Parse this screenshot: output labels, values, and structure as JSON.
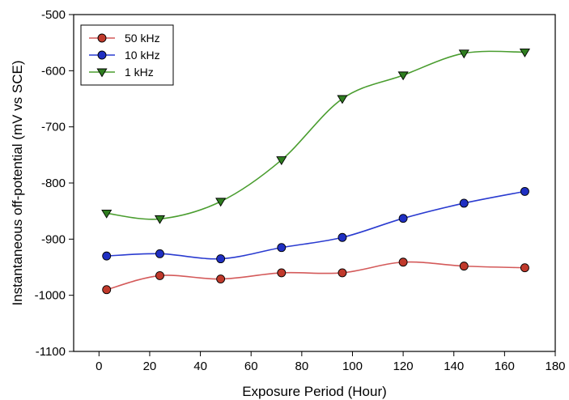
{
  "chart_data": {
    "type": "line",
    "xlabel": "Exposure Period (Hour)",
    "ylabel": "Instantaneous off-potential (mV vs SCE)",
    "xlim": [
      -10,
      180
    ],
    "ylim": [
      -1100,
      -500
    ],
    "xticks": [
      0,
      20,
      40,
      60,
      80,
      100,
      120,
      140,
      160,
      180
    ],
    "yticks": [
      -1100,
      -1000,
      -900,
      -800,
      -700,
      -600,
      -500
    ],
    "grid": false,
    "legend_position": "top-left",
    "series": [
      {
        "name": "50 kHz",
        "color": "#c0392b",
        "marker": "circle",
        "line_color": "#d45a5a",
        "x": [
          3,
          24,
          48,
          72,
          96,
          120,
          144,
          168
        ],
        "y": [
          -990,
          -965,
          -971,
          -960,
          -960,
          -941,
          -948,
          -951
        ]
      },
      {
        "name": "10 kHz",
        "color": "#1f2fc2",
        "marker": "circle",
        "line_color": "#2a3bd0",
        "x": [
          3,
          24,
          48,
          72,
          96,
          120,
          144,
          168
        ],
        "y": [
          -930,
          -926,
          -935,
          -915,
          -897,
          -863,
          -836,
          -815
        ]
      },
      {
        "name": "1 kHz",
        "color": "#2e7d1f",
        "marker": "triangle-down",
        "line_color": "#4a9d2f",
        "x": [
          3,
          24,
          48,
          72,
          96,
          120,
          144,
          168
        ],
        "y": [
          -854,
          -864,
          -833,
          -759,
          -650,
          -608,
          -569,
          -567
        ]
      }
    ]
  }
}
